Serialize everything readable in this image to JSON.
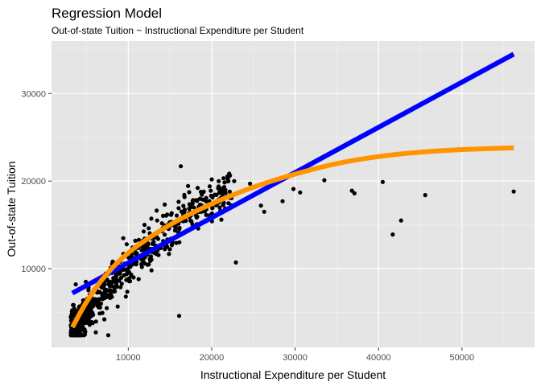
{
  "chart_data": {
    "type": "scatter",
    "title": "Regression Model",
    "subtitle": "Out-of-state Tuition ~ Instructional Expenditure per Student",
    "xlabel": "Instructional Expenditure per Student",
    "ylabel": "Out-of-state Tuition",
    "xlim": [
      800,
      58700
    ],
    "ylim": [
      1000,
      36000
    ],
    "xticks": [
      10000,
      20000,
      30000,
      40000,
      50000
    ],
    "yticks": [
      10000,
      20000,
      30000
    ],
    "xtick_labels": [
      "10000",
      "20000",
      "30000",
      "40000",
      "50000"
    ],
    "ytick_labels": [
      "10000",
      "20000",
      "30000"
    ],
    "grid": true,
    "background": "#e5e5e5",
    "point_color": "#000000",
    "points_sample": {
      "note_range_x": [
        3000,
        56000
      ],
      "outliers": [
        {
          "x": 56200,
          "y": 18800
        },
        {
          "x": 45600,
          "y": 18400
        },
        {
          "x": 42700,
          "y": 15500
        },
        {
          "x": 41700,
          "y": 13900
        },
        {
          "x": 40500,
          "y": 19900
        },
        {
          "x": 37100,
          "y": 18600
        },
        {
          "x": 36800,
          "y": 18900
        },
        {
          "x": 33500,
          "y": 20100
        },
        {
          "x": 30600,
          "y": 18700
        },
        {
          "x": 29800,
          "y": 19100
        },
        {
          "x": 28500,
          "y": 17700
        },
        {
          "x": 27000,
          "y": 19600
        },
        {
          "x": 26300,
          "y": 16500
        },
        {
          "x": 25900,
          "y": 17200
        },
        {
          "x": 24600,
          "y": 19700
        },
        {
          "x": 22900,
          "y": 10700
        },
        {
          "x": 22700,
          "y": 20000
        },
        {
          "x": 16300,
          "y": 21700
        },
        {
          "x": 16100,
          "y": 4600
        },
        {
          "x": 7600,
          "y": 2400
        },
        {
          "x": 4100,
          "y": 2600
        },
        {
          "x": 3700,
          "y": 8200
        }
      ],
      "dense_count": 640
    },
    "series": [
      {
        "type": "line",
        "color": "#0000ff",
        "x": [
          3300,
          56200
        ],
        "y": [
          7200,
          34500
        ]
      },
      {
        "type": "curve",
        "color": "#ff9400",
        "x": [
          3300,
          5000,
          7000,
          10000,
          15000,
          20000,
          25000,
          30000,
          35000,
          40000,
          45000,
          50000,
          56200
        ],
        "y": [
          3300,
          6200,
          8900,
          11800,
          15000,
          17400,
          19300,
          20800,
          22000,
          22800,
          23300,
          23600,
          23800
        ]
      }
    ]
  }
}
